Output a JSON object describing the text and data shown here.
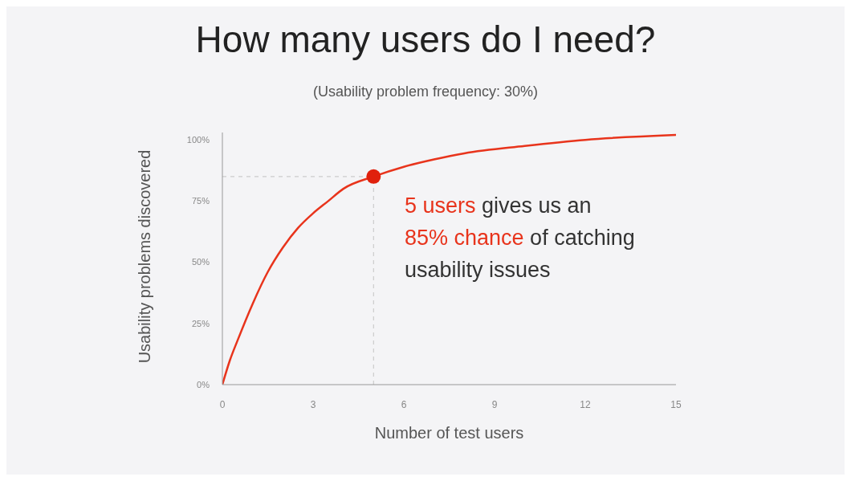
{
  "chart_data": {
    "type": "line",
    "title": "How many users do I need?",
    "subtitle": "(Usability problem frequency: 30%)",
    "xlabel": "Number of test users",
    "ylabel": "Usability problems discovered",
    "xlim": [
      0,
      15
    ],
    "xticks": [
      0,
      3,
      6,
      9,
      12,
      15
    ],
    "ylim": [
      0,
      103
    ],
    "yticks": [
      {
        "value": 0,
        "label": "0%"
      },
      {
        "value": 25,
        "label": "25%"
      },
      {
        "value": 50,
        "label": "50%"
      },
      {
        "value": 75,
        "label": "75%"
      },
      {
        "value": 100,
        "label": "100%"
      }
    ],
    "grid": false,
    "marker": "none",
    "line_style": "solid",
    "series": [
      {
        "color": "#e8341c",
        "x": [
          0,
          0.25,
          0.5,
          1,
          1.5,
          2,
          2.5,
          3,
          3.5,
          4,
          5,
          6,
          7,
          8,
          10,
          12,
          15
        ],
        "values": [
          0,
          10,
          18,
          33,
          46,
          56,
          64,
          70,
          75,
          80,
          85,
          89,
          92,
          94.5,
          97.5,
          100,
          102
        ]
      },
      {
        "type": "scatter",
        "color": "#e0200c",
        "marker": "circle",
        "x": [
          5
        ],
        "values": [
          85
        ]
      }
    ],
    "ref_lines": [
      {
        "axis": "x",
        "value": 5,
        "color": "#cccccc",
        "line_style": "dashed"
      },
      {
        "axis": "y",
        "value": 85,
        "color": "#cccccc",
        "line_style": "dashed"
      }
    ],
    "annotations": [
      "5 users",
      "gives us an",
      "85% chance",
      "of catching",
      "usability issues"
    ]
  }
}
